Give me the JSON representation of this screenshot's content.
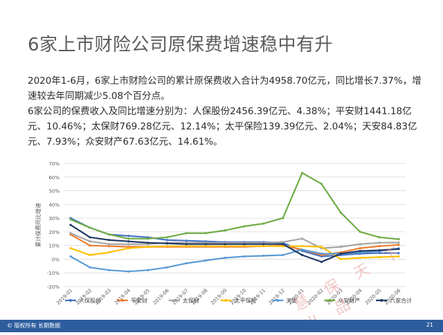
{
  "title": "6家上市财险公司原保费增速稳中有升",
  "paragraph1": "2020年1-6月，6家上市财险公司的累计原保费收入合计为4958.70亿元，同比增长7.37%，增速较去年同期减少5.08个百分点。",
  "paragraph2": "6家公司的保费收入及同比增速分别为：人保股份2456.39亿元、4.38%；平安财1441.18亿元、10.46%；太保财769.28亿元、12.14%；太平保险139.39亿元、2.04%；天安84.83亿元、7.93%；众安财产67.63亿元、14.61%。",
  "watermark": "慧 保 天 下 出 品",
  "footer": {
    "copyright": "© 版权所有 长期数据",
    "page_number": "21"
  },
  "chart_data": {
    "type": "line",
    "ylabel": "累计保费同比增速",
    "ylim": [
      -20,
      70
    ],
    "yticks": [
      "-20%",
      "-10%",
      "0%",
      "10%",
      "20%",
      "30%",
      "40%",
      "50%",
      "60%",
      "70%"
    ],
    "x": [
      "2019-01",
      "2019-02",
      "2019-03",
      "2019-04",
      "2019-05",
      "2019-06",
      "2019-07",
      "2019-08",
      "2019-09",
      "2019-10",
      "2019-11",
      "2019-12",
      "2020-01",
      "2020-02",
      "2020-03",
      "2020-04",
      "2020-05",
      "2020-06"
    ],
    "grid": true,
    "legend_position": "bottom",
    "series": [
      {
        "name": "人保股份",
        "color": "#4472c4",
        "values": [
          30,
          23,
          18,
          17,
          16,
          14,
          13.5,
          13,
          12.5,
          12.5,
          12.5,
          12,
          6,
          2,
          3,
          4,
          4.5,
          4.4
        ]
      },
      {
        "name": "平安财",
        "color": "#ed7d31",
        "values": [
          18,
          10,
          9.5,
          9,
          9,
          9,
          9,
          9,
          9,
          9,
          9.5,
          10,
          7,
          3,
          5,
          8,
          9.5,
          10.5
        ]
      },
      {
        "name": "太保财",
        "color": "#a5a5a5",
        "values": [
          19,
          13,
          11,
          11,
          11,
          12,
          12,
          12,
          12,
          12,
          12,
          12.5,
          15,
          8,
          9,
          11,
          12,
          12.1
        ]
      },
      {
        "name": "太平保险",
        "color": "#ffc000",
        "values": [
          8,
          3,
          5,
          8,
          9,
          9.5,
          9.5,
          9.5,
          9.5,
          9.5,
          9.5,
          9.5,
          9.5,
          9,
          0,
          1,
          1.5,
          2
        ]
      },
      {
        "name": "天安",
        "color": "#5b9bd5",
        "values": [
          2,
          -6,
          -8,
          -9,
          -8,
          -6,
          -3,
          -1,
          1,
          2,
          2.5,
          3,
          7,
          4,
          4,
          5,
          6,
          7.9
        ]
      },
      {
        "name": "众安财产",
        "color": "#70ad47",
        "values": [
          29,
          23,
          18,
          15,
          15,
          16,
          19,
          19,
          21,
          24,
          26,
          30,
          63,
          55,
          34,
          20,
          16,
          14.6
        ]
      },
      {
        "name": "六家合计",
        "color": "#1f3864",
        "values": [
          25,
          16,
          14,
          13,
          12,
          11.5,
          11,
          11,
          11,
          11,
          11,
          11,
          3,
          -2,
          4,
          6,
          6.5,
          7.4
        ]
      }
    ]
  }
}
